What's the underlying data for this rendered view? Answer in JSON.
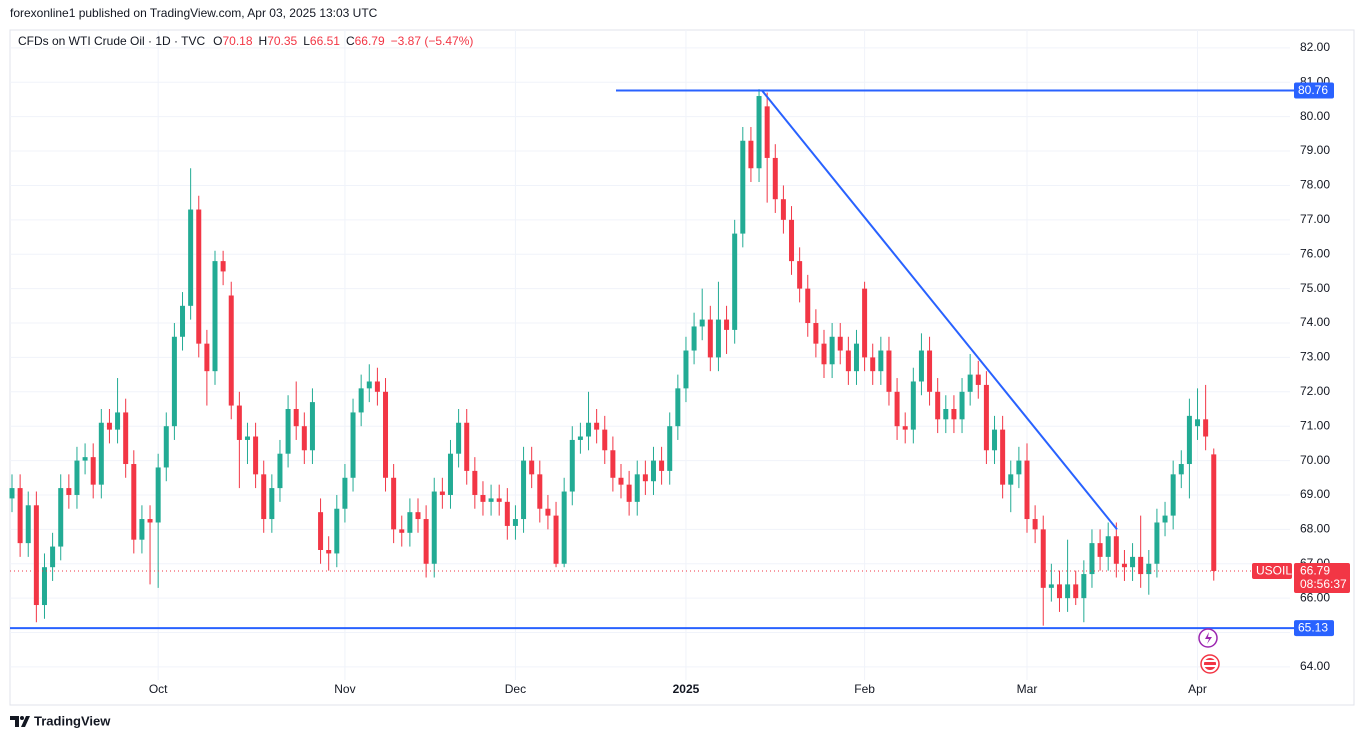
{
  "header": "forexonline1 published on TradingView.com, Apr 03, 2025 13:03 UTC",
  "chart_data": {
    "type": "candlestick",
    "title": "CFDs on WTI Crude Oil · 1D · TVC",
    "ohlc_labels": [
      "O",
      "H",
      "L",
      "C"
    ],
    "change": "−3.87 (−5.47%)",
    "symbol": "USOIL",
    "countdown": "08:56:37",
    "up_color": "#22ab94",
    "down_color": "#f23645",
    "line_color": "#2962ff",
    "grid": true,
    "categories": [
      null,
      null,
      null,
      null,
      null,
      null,
      null,
      null,
      null,
      null,
      null,
      null,
      null,
      null,
      null,
      null,
      null,
      null,
      "Oct",
      null,
      null,
      null,
      null,
      null,
      null,
      null,
      null,
      null,
      null,
      null,
      null,
      null,
      null,
      null,
      null,
      null,
      null,
      null,
      null,
      null,
      null,
      "Nov",
      null,
      null,
      null,
      null,
      null,
      null,
      null,
      null,
      null,
      null,
      null,
      null,
      null,
      null,
      null,
      null,
      null,
      null,
      null,
      null,
      "Dec",
      null,
      null,
      null,
      null,
      null,
      null,
      null,
      null,
      null,
      null,
      null,
      null,
      null,
      null,
      null,
      null,
      null,
      null,
      null,
      null,
      "2025",
      null,
      null,
      null,
      null,
      null,
      null,
      null,
      null,
      null,
      null,
      null,
      null,
      null,
      null,
      null,
      null,
      null,
      null,
      null,
      null,
      null,
      "Feb",
      null,
      null,
      null,
      null,
      null,
      null,
      null,
      null,
      null,
      null,
      null,
      null,
      null,
      null,
      null,
      null,
      null,
      null,
      null,
      "Mar",
      null,
      null,
      null,
      null,
      null,
      null,
      null,
      null,
      null,
      null,
      null,
      null,
      null,
      null,
      null,
      null,
      null,
      null,
      null,
      null,
      "Apr",
      null,
      null
    ],
    "ohlc": [
      [
        68.9,
        69.6,
        68.5,
        69.2
      ],
      [
        69.2,
        69.6,
        67.2,
        67.6
      ],
      [
        67.6,
        69.1,
        67.2,
        68.7
      ],
      [
        68.7,
        69.1,
        65.3,
        65.8
      ],
      [
        65.8,
        67.3,
        65.4,
        66.9
      ],
      [
        66.9,
        67.9,
        66.5,
        67.5
      ],
      [
        67.5,
        69.6,
        67.1,
        69.2
      ],
      [
        69.2,
        69.6,
        68.6,
        69.0
      ],
      [
        69.0,
        70.4,
        68.6,
        70.0
      ],
      [
        70.0,
        70.5,
        69.6,
        70.1
      ],
      [
        70.1,
        70.5,
        68.9,
        69.3
      ],
      [
        69.3,
        71.5,
        68.9,
        71.1
      ],
      [
        71.1,
        71.5,
        70.5,
        70.9
      ],
      [
        70.9,
        72.4,
        70.5,
        71.4
      ],
      [
        71.4,
        71.8,
        69.5,
        69.9
      ],
      [
        69.9,
        70.3,
        67.3,
        67.7
      ],
      [
        67.7,
        68.7,
        67.3,
        68.3
      ],
      [
        68.3,
        68.7,
        66.4,
        68.2
      ],
      [
        68.2,
        70.2,
        66.3,
        69.8
      ],
      [
        69.8,
        71.4,
        69.4,
        71.0
      ],
      [
        71.0,
        74.0,
        70.6,
        73.6
      ],
      [
        73.6,
        74.9,
        73.2,
        74.5
      ],
      [
        74.5,
        78.5,
        74.1,
        77.3
      ],
      [
        77.3,
        77.7,
        73.0,
        73.4
      ],
      [
        73.4,
        73.8,
        71.6,
        72.6
      ],
      [
        72.6,
        76.1,
        72.2,
        75.8
      ],
      [
        75.8,
        76.1,
        75.1,
        75.5
      ],
      [
        74.8,
        75.2,
        71.2,
        71.6
      ],
      [
        71.6,
        72.0,
        69.2,
        70.6
      ],
      [
        70.6,
        71.1,
        69.9,
        70.7
      ],
      [
        70.7,
        71.1,
        69.2,
        69.6
      ],
      [
        69.6,
        70.0,
        67.9,
        68.3
      ],
      [
        68.3,
        69.6,
        67.9,
        69.2
      ],
      [
        69.2,
        70.6,
        68.8,
        70.2
      ],
      [
        70.2,
        71.9,
        69.8,
        71.5
      ],
      [
        71.5,
        72.3,
        70.6,
        71.0
      ],
      [
        71.0,
        71.4,
        69.9,
        70.3
      ],
      [
        70.3,
        72.1,
        69.9,
        71.7
      ],
      [
        68.5,
        68.9,
        67.0,
        67.4
      ],
      [
        67.4,
        67.8,
        66.8,
        67.3
      ],
      [
        67.3,
        69.0,
        66.9,
        68.6
      ],
      [
        68.6,
        69.9,
        68.2,
        69.5
      ],
      [
        69.5,
        71.8,
        69.1,
        71.4
      ],
      [
        71.4,
        72.5,
        71.0,
        72.1
      ],
      [
        72.1,
        72.8,
        71.7,
        72.3
      ],
      [
        72.3,
        72.7,
        71.6,
        72.0
      ],
      [
        72.0,
        72.4,
        69.1,
        69.5
      ],
      [
        69.5,
        69.9,
        67.6,
        68.0
      ],
      [
        68.0,
        68.4,
        67.5,
        67.9
      ],
      [
        67.9,
        68.9,
        67.5,
        68.5
      ],
      [
        68.5,
        68.9,
        67.9,
        68.3
      ],
      [
        68.3,
        68.7,
        66.6,
        67.0
      ],
      [
        67.0,
        69.5,
        66.6,
        69.1
      ],
      [
        69.1,
        69.5,
        68.6,
        69.0
      ],
      [
        69.0,
        70.6,
        68.6,
        70.2
      ],
      [
        70.2,
        71.5,
        69.8,
        71.1
      ],
      [
        71.1,
        71.5,
        69.3,
        69.7
      ],
      [
        69.7,
        70.1,
        68.6,
        69.0
      ],
      [
        69.0,
        69.4,
        68.4,
        68.8
      ],
      [
        68.8,
        69.3,
        68.4,
        68.9
      ],
      [
        68.9,
        69.3,
        68.4,
        68.8
      ],
      [
        68.8,
        69.2,
        67.7,
        68.1
      ],
      [
        68.1,
        68.7,
        67.7,
        68.3
      ],
      [
        68.3,
        70.4,
        67.9,
        70.0
      ],
      [
        70.0,
        70.4,
        69.2,
        69.6
      ],
      [
        69.6,
        70.0,
        68.2,
        68.6
      ],
      [
        68.6,
        69.0,
        68.0,
        68.4
      ],
      [
        68.4,
        68.8,
        66.9,
        67.0
      ],
      [
        67.0,
        69.5,
        66.9,
        69.1
      ],
      [
        69.1,
        71.0,
        68.7,
        70.6
      ],
      [
        70.6,
        71.1,
        70.2,
        70.7
      ],
      [
        70.7,
        72.0,
        70.3,
        71.1
      ],
      [
        71.1,
        71.5,
        70.5,
        70.9
      ],
      [
        70.9,
        71.3,
        69.9,
        70.3
      ],
      [
        70.3,
        70.7,
        69.1,
        69.5
      ],
      [
        69.5,
        69.9,
        68.9,
        69.3
      ],
      [
        69.3,
        69.7,
        68.4,
        68.8
      ],
      [
        68.8,
        70.0,
        68.4,
        69.6
      ],
      [
        69.6,
        70.0,
        69.0,
        69.4
      ],
      [
        69.4,
        70.4,
        69.0,
        70.0
      ],
      [
        70.0,
        70.4,
        69.3,
        69.7
      ],
      [
        69.7,
        71.4,
        69.3,
        71.0
      ],
      [
        71.0,
        72.5,
        70.6,
        72.1
      ],
      [
        72.1,
        73.6,
        71.7,
        73.2
      ],
      [
        73.2,
        74.3,
        72.8,
        73.9
      ],
      [
        73.9,
        75.0,
        73.5,
        74.1
      ],
      [
        74.1,
        74.5,
        72.6,
        73.0
      ],
      [
        73.0,
        75.2,
        72.6,
        74.1
      ],
      [
        74.1,
        74.5,
        73.1,
        73.8
      ],
      [
        73.8,
        77.0,
        73.4,
        76.6
      ],
      [
        76.6,
        79.7,
        76.2,
        79.3
      ],
      [
        79.3,
        79.7,
        78.1,
        78.5
      ],
      [
        78.5,
        80.8,
        78.1,
        80.6
      ],
      [
        80.3,
        80.7,
        77.5,
        78.8
      ],
      [
        78.8,
        79.2,
        77.2,
        77.6
      ],
      [
        77.6,
        78.0,
        76.6,
        77.0
      ],
      [
        77.0,
        77.4,
        75.4,
        75.8
      ],
      [
        75.8,
        76.2,
        74.6,
        75.0
      ],
      [
        75.0,
        75.4,
        73.6,
        74.0
      ],
      [
        74.0,
        74.4,
        73.0,
        73.4
      ],
      [
        73.4,
        73.8,
        72.4,
        72.8
      ],
      [
        72.8,
        74.0,
        72.4,
        73.6
      ],
      [
        73.6,
        74.0,
        72.8,
        73.2
      ],
      [
        73.2,
        73.6,
        72.2,
        72.6
      ],
      [
        72.6,
        73.8,
        72.2,
        73.4
      ],
      [
        75.0,
        75.2,
        72.6,
        73.0
      ],
      [
        73.0,
        73.4,
        72.2,
        72.6
      ],
      [
        72.6,
        73.6,
        72.2,
        73.2
      ],
      [
        73.2,
        73.6,
        71.6,
        72.0
      ],
      [
        72.0,
        72.4,
        70.6,
        71.0
      ],
      [
        71.0,
        71.4,
        70.5,
        70.9
      ],
      [
        70.9,
        72.7,
        70.5,
        72.3
      ],
      [
        72.3,
        73.7,
        71.9,
        73.2
      ],
      [
        73.2,
        73.6,
        71.6,
        72.0
      ],
      [
        72.0,
        72.4,
        70.8,
        71.2
      ],
      [
        71.2,
        71.9,
        70.8,
        71.5
      ],
      [
        71.5,
        71.9,
        70.8,
        71.2
      ],
      [
        71.2,
        72.4,
        70.8,
        72.0
      ],
      [
        72.0,
        73.1,
        71.6,
        72.5
      ],
      [
        72.5,
        72.9,
        71.8,
        72.2
      ],
      [
        72.2,
        72.6,
        69.9,
        70.3
      ],
      [
        70.3,
        71.3,
        69.9,
        70.9
      ],
      [
        70.9,
        71.3,
        68.9,
        69.3
      ],
      [
        69.3,
        70.0,
        68.5,
        69.6
      ],
      [
        69.6,
        70.4,
        69.2,
        70.0
      ],
      [
        70.0,
        70.5,
        67.9,
        68.3
      ],
      [
        68.3,
        68.7,
        67.6,
        68.0
      ],
      [
        68.0,
        68.4,
        65.2,
        66.3
      ],
      [
        66.3,
        67.0,
        65.9,
        66.4
      ],
      [
        66.4,
        66.8,
        65.6,
        66.0
      ],
      [
        66.0,
        67.7,
        65.6,
        66.4
      ],
      [
        66.4,
        66.8,
        65.8,
        66.0
      ],
      [
        66.0,
        67.1,
        65.3,
        66.7
      ],
      [
        66.7,
        68.0,
        66.3,
        67.6
      ],
      [
        67.6,
        68.0,
        66.8,
        67.2
      ],
      [
        67.2,
        68.2,
        66.8,
        67.8
      ],
      [
        67.8,
        68.2,
        66.6,
        67.0
      ],
      [
        67.0,
        67.4,
        66.5,
        66.9
      ],
      [
        66.9,
        67.6,
        66.5,
        67.2
      ],
      [
        67.2,
        68.4,
        66.3,
        66.7
      ],
      [
        66.7,
        67.4,
        66.1,
        67.0
      ],
      [
        67.0,
        68.6,
        66.6,
        68.2
      ],
      [
        68.2,
        68.8,
        67.8,
        68.4
      ],
      [
        68.4,
        70.0,
        68.0,
        69.6
      ],
      [
        69.6,
        70.3,
        69.2,
        69.9
      ],
      [
        69.9,
        71.8,
        68.9,
        71.3
      ],
      [
        71.0,
        72.1,
        70.6,
        71.2
      ],
      [
        71.2,
        72.2,
        70.3,
        70.7
      ],
      [
        70.18,
        70.35,
        66.51,
        66.79
      ]
    ],
    "ylim": [
      63.62,
      82.52
    ],
    "yticks": [
      {
        "value": 64,
        "label": "64.00"
      },
      {
        "value": 65,
        "label": "65.00"
      },
      {
        "value": 66,
        "label": "66.00"
      },
      {
        "value": 67,
        "label": "67.00"
      },
      {
        "value": 68,
        "label": "68.00"
      },
      {
        "value": 69,
        "label": "69.00"
      },
      {
        "value": 70,
        "label": "70.00"
      },
      {
        "value": 71,
        "label": "71.00"
      },
      {
        "value": 72,
        "label": "72.00"
      },
      {
        "value": 73,
        "label": "73.00"
      },
      {
        "value": 74,
        "label": "74.00"
      },
      {
        "value": 75,
        "label": "75.00"
      },
      {
        "value": 76,
        "label": "76.00"
      },
      {
        "value": 77,
        "label": "77.00"
      },
      {
        "value": 78,
        "label": "78.00"
      },
      {
        "value": 79,
        "label": "79.00"
      },
      {
        "value": 80,
        "label": "80.00"
      },
      {
        "value": 81,
        "label": "81.00"
      },
      {
        "value": 82,
        "label": "82.00"
      }
    ],
    "hlines": [
      80.76,
      65.13
    ],
    "trendline": [
      80.76,
      68.0
    ]
  },
  "footer": "TradingView"
}
